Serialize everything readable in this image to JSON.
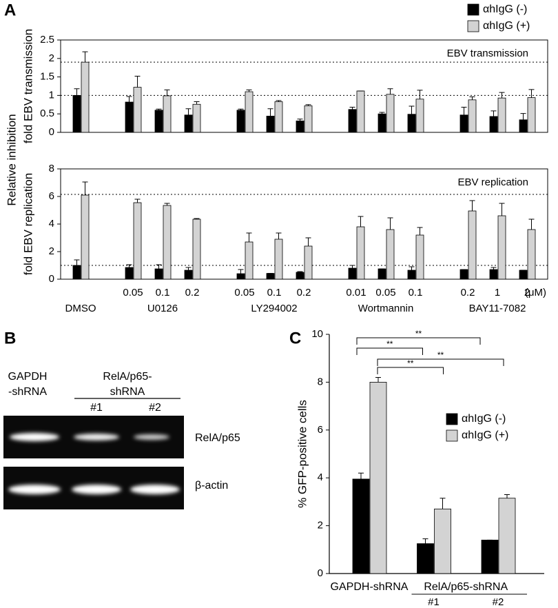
{
  "panel_labels": [
    "A",
    "B",
    "C"
  ],
  "panel_a_ylabel": "Relative inhibition",
  "panel_b": {
    "header_1": [
      "GAPDH",
      "-shRNA"
    ],
    "header_2": [
      "RelA/p65-",
      "shRNA"
    ],
    "lanes": [
      "#1",
      "#2"
    ],
    "bands": [
      "RelA/p65",
      "β-actin"
    ]
  },
  "chart_data": [
    {
      "type": "bar",
      "ylabel": "fold EBV transmission",
      "annotation": "EBV transmission",
      "ylim": [
        0,
        2.5
      ],
      "yticks": [
        0,
        0.5,
        1,
        1.5,
        2,
        2.5
      ],
      "frame": true,
      "reference_lines": [
        1,
        1.9
      ],
      "series": [
        {
          "name": "αhIgG (-)",
          "color": "#000000",
          "values": [
            1.0,
            0.82,
            0.6,
            0.47,
            0.6,
            0.44,
            0.31,
            0.62,
            0.5,
            0.49,
            0.47,
            0.43,
            0.34
          ],
          "errors": [
            0.18,
            0.15,
            0.03,
            0.17,
            0.03,
            0.2,
            0.05,
            0.06,
            0.04,
            0.22,
            0.21,
            0.15,
            0.17
          ]
        },
        {
          "name": "αhIgG (+)",
          "color": "#d3d3d3",
          "values": [
            1.9,
            1.22,
            0.99,
            0.76,
            1.1,
            0.83,
            0.72,
            1.12,
            1.03,
            0.9,
            0.88,
            0.93,
            0.94
          ],
          "errors": [
            0.28,
            0.3,
            0.16,
            0.07,
            0.05,
            0.03,
            0.03,
            0,
            0.15,
            0.24,
            0.08,
            0.15,
            0.22
          ]
        }
      ]
    },
    {
      "type": "bar",
      "ylabel": "fold EBV replication",
      "annotation": "EBV replication",
      "ylim": [
        0,
        8
      ],
      "yticks": [
        0,
        2,
        4,
        6,
        8
      ],
      "frame": true,
      "reference_lines": [
        1,
        6.15
      ],
      "unit_label": "(μM)",
      "groups": [
        {
          "name": "DMSO",
          "categories": [
            null
          ]
        },
        {
          "name": "U0126",
          "categories": [
            "0.05",
            "0.1",
            "0.2"
          ]
        },
        {
          "name": "LY294002",
          "categories": [
            "0.05",
            "0.1",
            "0.2"
          ]
        },
        {
          "name": "Wortmannin",
          "categories": [
            "0.01",
            "0.05",
            "0.1"
          ]
        },
        {
          "name": "BAY11-7082",
          "categories": [
            "0.2",
            "1",
            "2"
          ]
        }
      ],
      "series": [
        {
          "color": "#000000",
          "values": [
            1.0,
            0.85,
            0.75,
            0.65,
            0.4,
            0.42,
            0.5,
            0.8,
            0.75,
            0.65,
            0.7,
            0.7,
            0.65
          ],
          "errors": [
            0.4,
            0.2,
            0.3,
            0.2,
            0.3,
            0,
            0.05,
            0.2,
            0,
            0.25,
            0,
            0.15,
            0
          ]
        },
        {
          "color": "#d3d3d3",
          "values": [
            6.1,
            5.55,
            5.35,
            4.35,
            2.7,
            2.9,
            2.4,
            3.8,
            3.6,
            3.2,
            4.95,
            4.6,
            3.6
          ],
          "errors": [
            0.95,
            0.25,
            0.15,
            0.05,
            0.65,
            0.45,
            0.6,
            0.75,
            0.85,
            0.55,
            0.75,
            0.9,
            0.75
          ]
        }
      ]
    },
    {
      "type": "bar",
      "ylabel": "% GFP-positive cells",
      "ylim": [
        0,
        10
      ],
      "yticks": [
        0,
        2,
        4,
        6,
        8,
        10
      ],
      "frame": false,
      "groups": [
        {
          "name": "GAPDH-shRNA",
          "categories": [
            null
          ]
        },
        {
          "name": "RelA/p65-shRNA",
          "categories": [
            "#1",
            "#2"
          ]
        }
      ],
      "significance": [
        "**",
        "**",
        "**",
        "**"
      ],
      "series": [
        {
          "name": "αhIgG (-)",
          "color": "#000000",
          "values": [
            3.95,
            1.25,
            1.4
          ],
          "errors": [
            0.25,
            0.2,
            0
          ]
        },
        {
          "name": "αhIgG (+)",
          "color": "#d3d3d3",
          "values": [
            8.0,
            2.7,
            3.15
          ],
          "errors": [
            0.2,
            0.45,
            0.15
          ]
        }
      ]
    }
  ]
}
